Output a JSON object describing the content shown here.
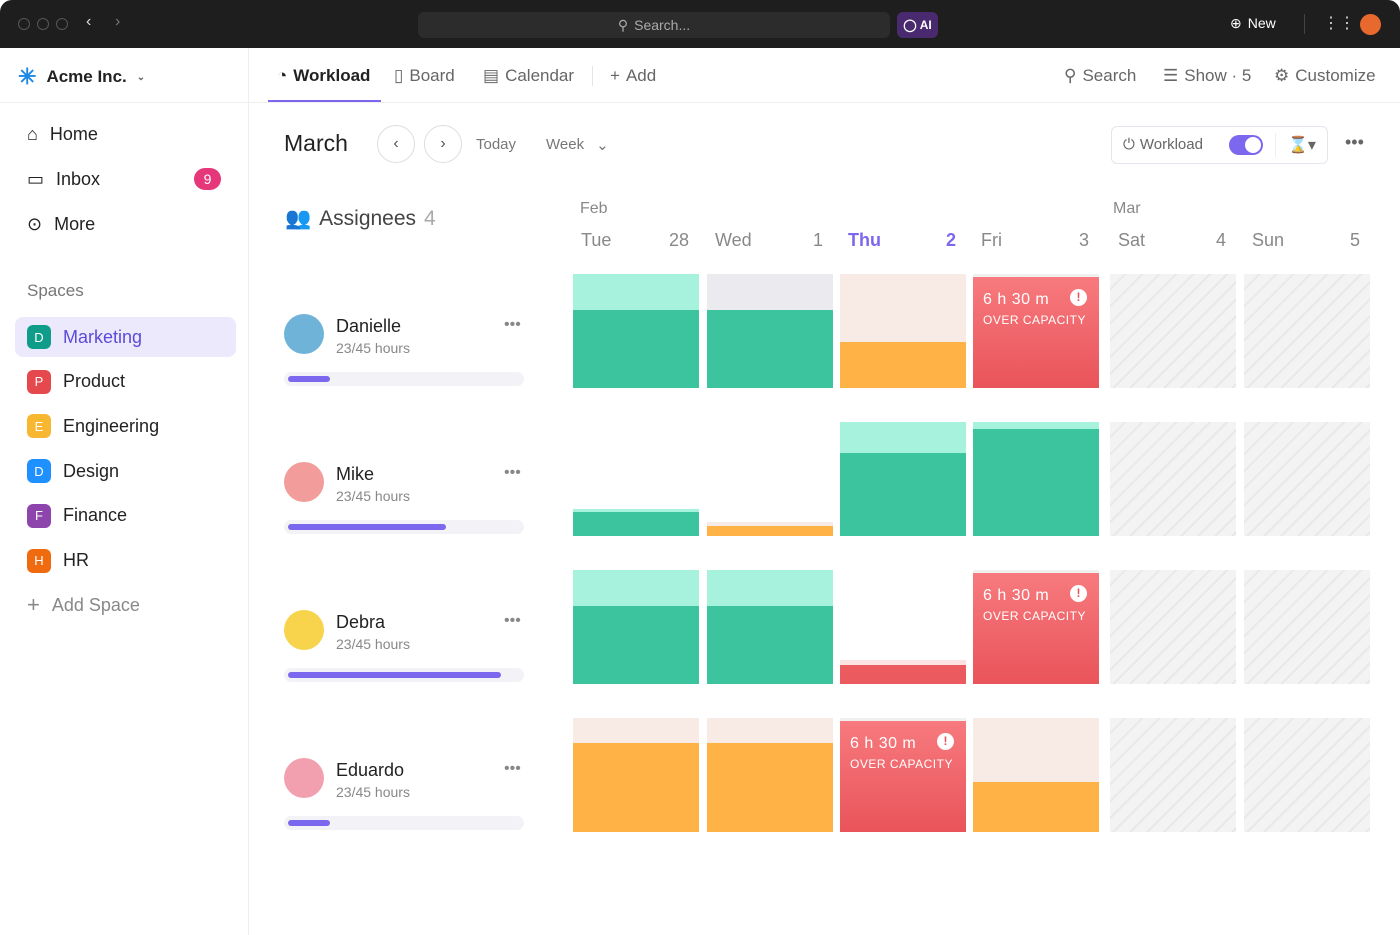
{
  "topbar": {
    "search_placeholder": "Search...",
    "ai_label": "AI",
    "new_label": "New"
  },
  "workspace": {
    "name": "Acme Inc."
  },
  "sidebar": {
    "items": [
      {
        "label": "Home"
      },
      {
        "label": "Inbox",
        "badge": "9"
      },
      {
        "label": "More"
      }
    ],
    "spaces_heading": "Spaces",
    "spaces": [
      {
        "letter": "D",
        "label": "Marketing",
        "color": "#0f9d8a",
        "active": true
      },
      {
        "letter": "P",
        "label": "Product",
        "color": "#e5484d"
      },
      {
        "letter": "E",
        "label": "Engineering",
        "color": "#f7b731"
      },
      {
        "letter": "D",
        "label": "Design",
        "color": "#1e90ff"
      },
      {
        "letter": "F",
        "label": "Finance",
        "color": "#8e44ad"
      },
      {
        "letter": "H",
        "label": "HR",
        "color": "#f06a0f"
      }
    ],
    "add_space": "Add Space"
  },
  "tabs": [
    {
      "label": "Workload",
      "active": true
    },
    {
      "label": "Board"
    },
    {
      "label": "Calendar"
    },
    {
      "label": "Add"
    }
  ],
  "toolbar_right": {
    "search": "Search",
    "show": "Show · 5",
    "customize": "Customize"
  },
  "view": {
    "month": "March",
    "today": "Today",
    "range": "Week",
    "workload_toggle": "Workload",
    "toggle_on": true
  },
  "assignees": {
    "label": "Assignees",
    "count": "4"
  },
  "months": {
    "first": "Feb",
    "second": "Mar"
  },
  "days": [
    {
      "name": "Tue",
      "num": "28"
    },
    {
      "name": "Wed",
      "num": "1"
    },
    {
      "name": "Thu",
      "num": "2",
      "today": true
    },
    {
      "name": "Fri",
      "num": "3"
    },
    {
      "name": "Sat",
      "num": "4",
      "weekend": true
    },
    {
      "name": "Sun",
      "num": "5",
      "weekend": true
    }
  ],
  "colors": {
    "green": "#3cc49e",
    "mint": "#a6f2dc",
    "orange": "#ffb347",
    "peach": "#f8ebe6",
    "red": "#ea5a5f",
    "accent": "#7b68ee"
  },
  "over_capacity": {
    "time": "6 h 30 m",
    "label": "OVER CAPACITY"
  },
  "people": [
    {
      "name": "Danielle",
      "hours": "23/45 hours",
      "progress": 0.18,
      "avatar_color": "#6fb3d9",
      "cells": [
        {
          "cap": 1,
          "load": 0.68,
          "capc": "mint",
          "c": "green"
        },
        {
          "cap": 1,
          "load": 0.68,
          "capc": "grey",
          "c": "green"
        },
        {
          "cap": 1,
          "load": 0.4,
          "capc": "peach",
          "c": "orange"
        },
        {
          "over": true
        },
        {
          "off": true
        },
        {
          "off": true
        }
      ]
    },
    {
      "name": "Mike",
      "hours": "23/45 hours",
      "progress": 0.68,
      "avatar_color": "#f29c9c",
      "cells": [
        {
          "cap": 0.24,
          "load": 0.21,
          "capc": "mint",
          "c": "green"
        },
        {
          "cap": 0.12,
          "load": 0.09,
          "capc": "peach",
          "c": "orange"
        },
        {
          "cap": 1,
          "load": 0.73,
          "capc": "mint",
          "c": "green"
        },
        {
          "cap": 1,
          "load": 0.94,
          "capc": "mint",
          "c": "green"
        },
        {
          "off": true
        },
        {
          "off": true
        }
      ]
    },
    {
      "name": "Debra",
      "hours": "23/45 hours",
      "progress": 0.92,
      "avatar_color": "#f7d44c",
      "cells": [
        {
          "cap": 1,
          "load": 0.68,
          "capc": "mint",
          "c": "green"
        },
        {
          "cap": 1,
          "load": 0.68,
          "capc": "mint",
          "c": "green"
        },
        {
          "cap": 0.21,
          "load": 0.17,
          "capc": "pink",
          "c": "red"
        },
        {
          "over": true
        },
        {
          "off": true
        },
        {
          "off": true
        }
      ]
    },
    {
      "name": "Eduardo",
      "hours": "23/45 hours",
      "progress": 0.18,
      "avatar_color": "#f2a0b0",
      "cells": [
        {
          "cap": 1,
          "load": 0.78,
          "capc": "peach",
          "c": "orange"
        },
        {
          "cap": 1,
          "load": 0.78,
          "capc": "peach",
          "c": "orange"
        },
        {
          "over": true
        },
        {
          "cap": 1,
          "load": 0.44,
          "capc": "peach",
          "c": "orange"
        },
        {
          "off": true
        },
        {
          "off": true
        }
      ]
    }
  ]
}
